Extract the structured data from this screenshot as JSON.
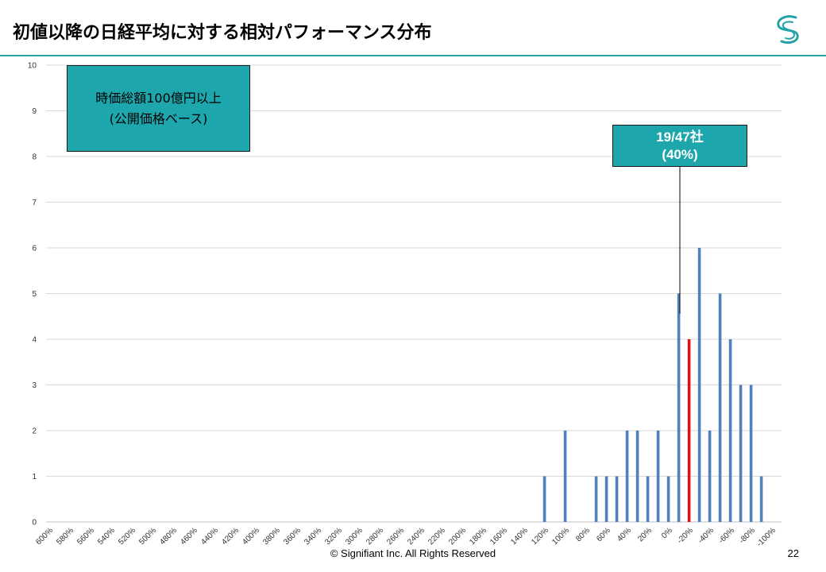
{
  "slide": {
    "title": "初値以降の日経平均に対する相対パフォーマンス分布",
    "footer": "© Signifiant Inc. All Rights Reserved",
    "page_number": "22",
    "accent_color": "#23a3a8",
    "logo_icon": "swirl-logo-icon"
  },
  "callouts": {
    "mcap_line1": "時価総額100億円以上",
    "mcap_line2": "(公開価格ベース)",
    "count_line1": "19/47社",
    "count_line2": "(40%)",
    "fill_color": "#1ea6ad"
  },
  "chart_data": {
    "type": "bar",
    "title": "",
    "xlabel": "",
    "ylabel": "",
    "ylim": [
      0,
      10
    ],
    "yticks": [
      0,
      1,
      2,
      3,
      4,
      5,
      6,
      7,
      8,
      9,
      10
    ],
    "grid": true,
    "categories": [
      "600%",
      "580%",
      "560%",
      "540%",
      "520%",
      "500%",
      "480%",
      "460%",
      "440%",
      "420%",
      "400%",
      "380%",
      "360%",
      "340%",
      "320%",
      "300%",
      "280%",
      "260%",
      "240%",
      "220%",
      "200%",
      "180%",
      "160%",
      "140%",
      "120%",
      "100%",
      "80%",
      "60%",
      "40%",
      "20%",
      "0%",
      "-20%",
      "-40%",
      "-60%",
      "-80%",
      "-100%"
    ],
    "bars": [
      {
        "x": 118,
        "value": 1
      },
      {
        "x": 98,
        "value": 2
      },
      {
        "x": 68,
        "value": 1
      },
      {
        "x": 58,
        "value": 1
      },
      {
        "x": 48,
        "value": 1
      },
      {
        "x": 38,
        "value": 2
      },
      {
        "x": 28,
        "value": 2
      },
      {
        "x": 18,
        "value": 1
      },
      {
        "x": 8,
        "value": 2
      },
      {
        "x": -2,
        "value": 1
      },
      {
        "x": -12,
        "value": 5
      },
      {
        "x": -22,
        "value": 4,
        "highlight": true
      },
      {
        "x": -32,
        "value": 6
      },
      {
        "x": -42,
        "value": 2
      },
      {
        "x": -52,
        "value": 5
      },
      {
        "x": -62,
        "value": 4
      },
      {
        "x": -72,
        "value": 3
      },
      {
        "x": -82,
        "value": 3
      },
      {
        "x": -92,
        "value": 1
      }
    ],
    "bar_color": "#4f81bd",
    "highlight_color": "#e01010"
  }
}
